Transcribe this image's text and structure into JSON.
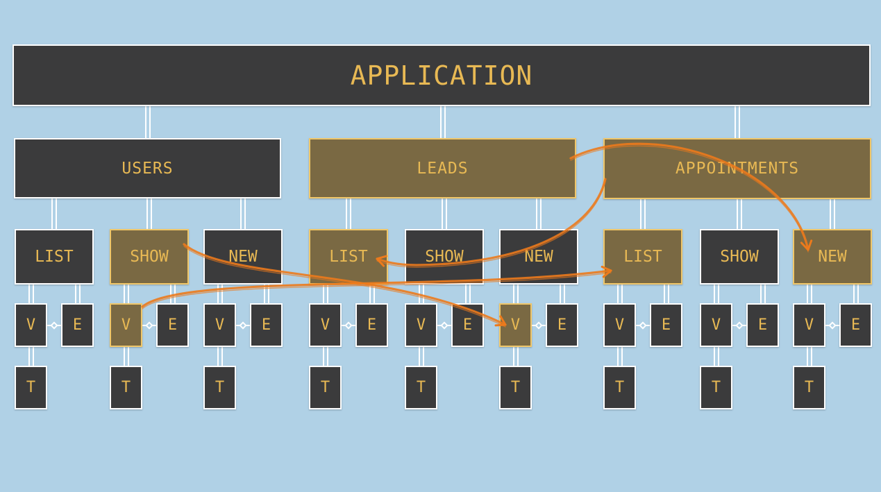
{
  "root": {
    "label": "APPLICATION"
  },
  "sections": [
    {
      "label": "USERS",
      "highlighted": false,
      "actions": [
        {
          "label": "LIST",
          "highlighted": false,
          "view": {
            "label": "V",
            "highlighted": false
          },
          "edit": {
            "label": "E"
          },
          "template": {
            "label": "T"
          }
        },
        {
          "label": "SHOW",
          "highlighted": true,
          "view": {
            "label": "V",
            "highlighted": true
          },
          "edit": {
            "label": "E"
          },
          "template": {
            "label": "T"
          }
        },
        {
          "label": "NEW",
          "highlighted": false,
          "view": {
            "label": "V",
            "highlighted": false
          },
          "edit": {
            "label": "E"
          },
          "template": {
            "label": "T"
          }
        }
      ]
    },
    {
      "label": "LEADS",
      "highlighted": true,
      "actions": [
        {
          "label": "LIST",
          "highlighted": true,
          "view": {
            "label": "V",
            "highlighted": false
          },
          "edit": {
            "label": "E"
          },
          "template": {
            "label": "T"
          }
        },
        {
          "label": "SHOW",
          "highlighted": false,
          "view": {
            "label": "V",
            "highlighted": false
          },
          "edit": {
            "label": "E"
          },
          "template": {
            "label": "T"
          }
        },
        {
          "label": "NEW",
          "highlighted": false,
          "view": {
            "label": "V",
            "highlighted": true
          },
          "edit": {
            "label": "E"
          },
          "template": {
            "label": "T"
          }
        }
      ]
    },
    {
      "label": "APPOINTMENTS",
      "highlighted": true,
      "actions": [
        {
          "label": "LIST",
          "highlighted": true,
          "view": {
            "label": "V",
            "highlighted": false
          },
          "edit": {
            "label": "E"
          },
          "template": {
            "label": "T"
          }
        },
        {
          "label": "SHOW",
          "highlighted": false,
          "view": {
            "label": "V",
            "highlighted": false
          },
          "edit": {
            "label": "E"
          },
          "template": {
            "label": "T"
          }
        },
        {
          "label": "NEW",
          "highlighted": true,
          "view": {
            "label": "V",
            "highlighted": false
          },
          "edit": {
            "label": "E"
          },
          "template": {
            "label": "T"
          }
        }
      ]
    }
  ],
  "colors": {
    "background": "#b0d1e6",
    "node": "#3b3b3c",
    "node_highlight": "#7a6943",
    "text": "#e8b954",
    "border": "#ffffff",
    "border_highlight": "#f0c76a",
    "arrow": "#ec7a1c"
  },
  "arrows": [
    {
      "from": "users.show",
      "to": "leads.new.view"
    },
    {
      "from": "users.show.view",
      "to": "appointments.list"
    },
    {
      "from": "appointments",
      "to": "leads.list"
    },
    {
      "from": "leads",
      "to": "appointments.new"
    }
  ]
}
